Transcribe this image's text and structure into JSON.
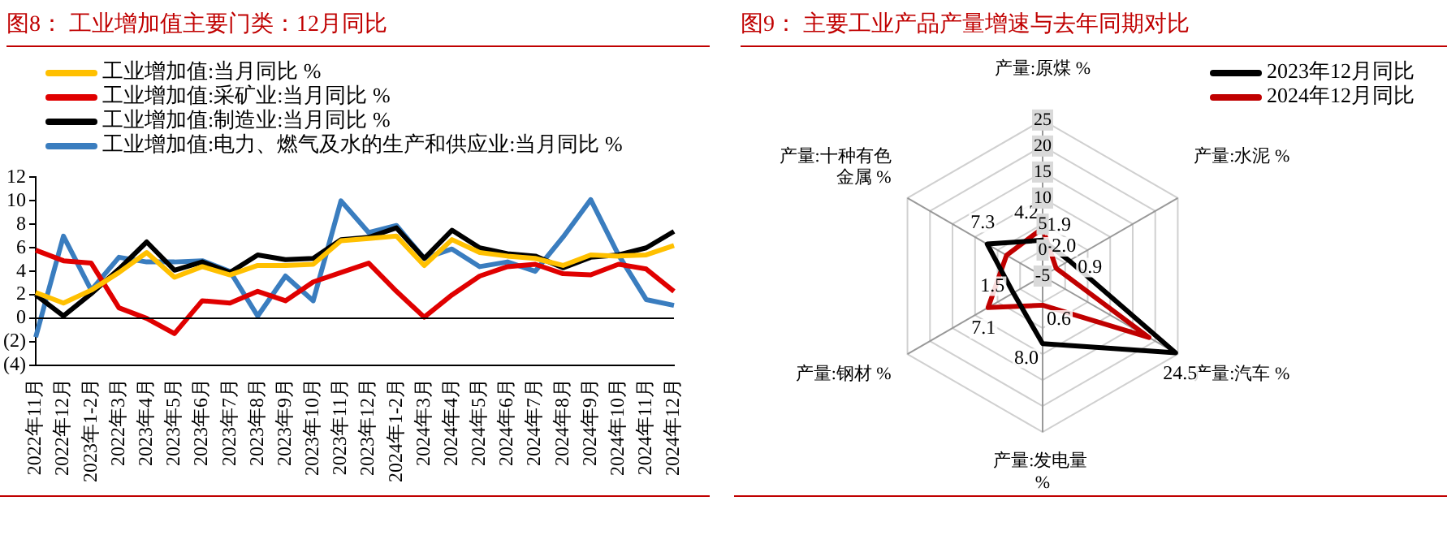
{
  "chart_data": [
    {
      "type": "line",
      "title": "图8：  工业增加值主要门类：12月同比",
      "categories": [
        "2022年11月",
        "2022年12月",
        "2023年1-2月",
        "2022年3月",
        "2023年4月",
        "2023年5月",
        "2023年6月",
        "2023年7月",
        "2023年8月",
        "2023年9月",
        "2023年10月",
        "2023年11月",
        "2023年12月",
        "2024年1-2月",
        "2024年3月",
        "2024年4月",
        "2024年5月",
        "2024年6月",
        "2024年7月",
        "2024年8月",
        "2024年9月",
        "2024年10月",
        "2024年11月",
        "2024年12月"
      ],
      "series": [
        {
          "name": "工业增加值:当月同比 %",
          "color": "#ffc000",
          "values": [
            2.2,
            1.3,
            2.4,
            3.9,
            5.6,
            3.5,
            4.4,
            3.7,
            4.5,
            4.5,
            4.6,
            6.6,
            6.8,
            7.0,
            4.5,
            6.7,
            5.6,
            5.3,
            5.1,
            4.5,
            5.4,
            5.3,
            5.4,
            6.2
          ]
        },
        {
          "name": "工业增加值:采矿业:当月同比 %",
          "color": "#e00000",
          "values": [
            5.8,
            4.9,
            4.7,
            0.9,
            0.0,
            -1.3,
            1.5,
            1.3,
            2.3,
            1.5,
            3.1,
            3.9,
            4.7,
            2.3,
            0.1,
            2.0,
            3.6,
            4.4,
            4.6,
            3.8,
            3.7,
            4.6,
            4.2,
            2.3
          ]
        },
        {
          "name": "工业增加值:制造业:当月同比 %",
          "color": "#000000",
          "values": [
            2.0,
            0.2,
            2.1,
            4.2,
            6.5,
            4.1,
            4.8,
            3.9,
            5.4,
            5.0,
            5.1,
            6.7,
            6.9,
            7.7,
            5.1,
            7.5,
            6.0,
            5.5,
            5.3,
            4.3,
            5.2,
            5.4,
            6.0,
            7.4
          ]
        },
        {
          "name": "工业增加值:电力、燃气及水的生产和供应业:当月同比 %",
          "color": "#3a7dbf",
          "values": [
            -1.6,
            7.0,
            2.4,
            5.2,
            4.8,
            4.8,
            4.9,
            4.0,
            0.2,
            3.6,
            1.5,
            10.0,
            7.3,
            7.9,
            5.1,
            5.9,
            4.4,
            4.8,
            4.0,
            6.9,
            10.1,
            5.4,
            1.6,
            1.1
          ]
        }
      ],
      "ylim": [
        -4,
        12
      ],
      "yticks": [
        {
          "value": -4,
          "label": "(4)"
        },
        {
          "value": -2,
          "label": "(2)"
        },
        0,
        2,
        4,
        6,
        8,
        10,
        12
      ],
      "legend": "top left",
      "marker": "none",
      "line_style": "solid"
    },
    {
      "type": "radar",
      "title": "图9：  主要工业产品产量增速与去年同期对比",
      "categories": [
        "产量:原煤 %",
        "产量:水泥 %",
        "产量:汽车 %",
        "产量:发电量 %",
        "产量:钢材 %",
        "产量:十种有色金属 %"
      ],
      "series": [
        {
          "name": "2023年12月同比",
          "color": "#000000",
          "values": [
            1.9,
            0.9,
            24.5,
            8.0,
            1.5,
            7.3
          ],
          "value_labels": [
            "1.9",
            "0.9",
            "24.5",
            "8.0",
            "1.5",
            "7.3"
          ]
        },
        {
          "name": "2024年12月同比",
          "color": "#c00000",
          "values": [
            4.2,
            -2.0,
            18.6,
            0.6,
            7.1,
            3.0
          ],
          "value_labels": [
            "4.2",
            "-2.0",
            null,
            "0.6",
            "7.1",
            null
          ]
        }
      ],
      "ylim": [
        -5,
        25
      ],
      "yticks": [
        -5,
        0,
        5,
        10,
        15,
        20,
        25
      ],
      "grid": true,
      "legend": "top right",
      "marker": "none",
      "line_style": "solid"
    }
  ]
}
